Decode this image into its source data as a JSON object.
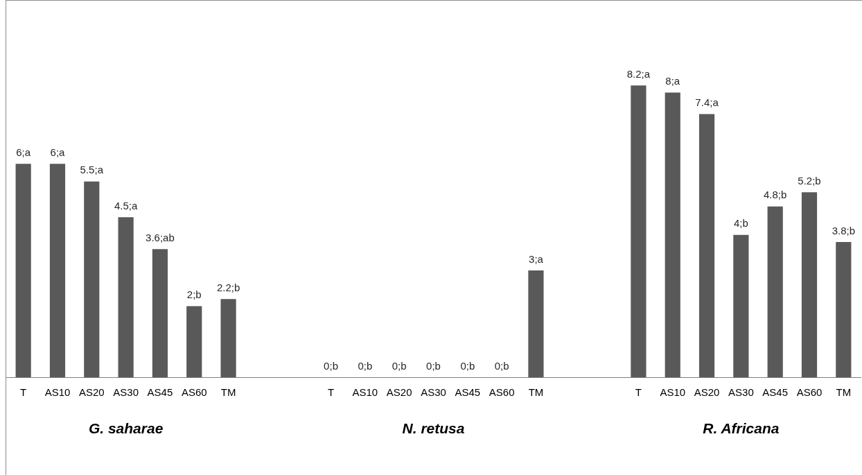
{
  "chart_data": {
    "type": "bar",
    "categories": [
      "T",
      "AS10",
      "AS20",
      "AS30",
      "AS45",
      "AS60",
      "TM",
      null,
      null,
      "T",
      "AS10",
      "AS20",
      "AS30",
      "AS45",
      "AS60",
      "TM",
      null,
      null,
      "T",
      "AS10",
      "AS20",
      "AS30",
      "AS45",
      "AS60",
      "TM"
    ],
    "values": [
      6,
      6,
      5.5,
      4.5,
      3.6,
      2,
      2.2,
      null,
      null,
      0,
      0,
      0,
      0,
      0,
      0,
      3,
      null,
      null,
      8.2,
      8,
      7.4,
      4,
      4.8,
      5.2,
      3.8
    ],
    "value_labels": [
      "6;a",
      "6;a",
      "5.5;a",
      "4.5;a",
      "3.6;ab",
      "2;b",
      "2.2;b",
      null,
      null,
      "0;b",
      "0;b",
      "0;b",
      "0;b",
      "0;b",
      "0;b",
      "3;a",
      null,
      null,
      "8.2;a",
      "8;a",
      "7.4;a",
      "4;b",
      "4.8;b",
      "5.2;b",
      "3.8;b"
    ],
    "color": "#595959",
    "tick_labels": "x",
    "annotations": [
      "G. saharae",
      "N. retusa",
      "R. Africana"
    ]
  }
}
